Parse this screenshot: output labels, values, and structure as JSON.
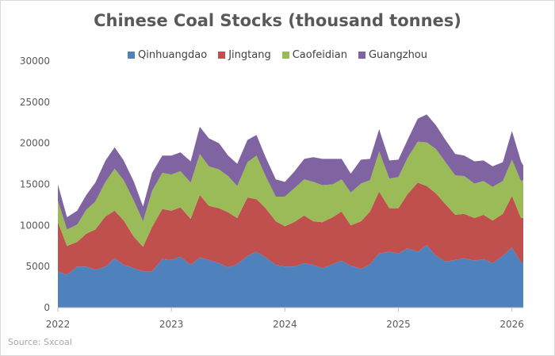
{
  "chart_data": {
    "type": "area",
    "stacked": true,
    "title": "Chinese Coal Stocks (thousand tonnes)",
    "source": "Source: Sxcoal",
    "ylim": [
      0,
      30000
    ],
    "yticks": [
      0,
      5000,
      10000,
      15000,
      20000,
      25000,
      30000
    ],
    "xlim": [
      2022.0,
      2026.1
    ],
    "xticks": [
      2022,
      2023,
      2024,
      2025,
      2026
    ],
    "legend_position": "top",
    "grid": false,
    "x": [
      2022.0,
      2022.08,
      2022.17,
      2022.25,
      2022.33,
      2022.42,
      2022.5,
      2022.58,
      2022.67,
      2022.75,
      2022.83,
      2022.92,
      2023.0,
      2023.08,
      2023.17,
      2023.25,
      2023.33,
      2023.42,
      2023.5,
      2023.58,
      2023.67,
      2023.75,
      2023.83,
      2023.92,
      2024.0,
      2024.08,
      2024.17,
      2024.25,
      2024.33,
      2024.42,
      2024.5,
      2024.58,
      2024.67,
      2024.75,
      2024.83,
      2024.92,
      2025.0,
      2025.08,
      2025.17,
      2025.25,
      2025.33,
      2025.42,
      2025.5,
      2025.58,
      2025.67,
      2025.75,
      2025.83,
      2025.92,
      2026.0,
      2026.08,
      2026.1
    ],
    "series": [
      {
        "name": "Qinhuangdao",
        "color": "#4f81bd",
        "values": [
          4400,
          4000,
          5000,
          5000,
          4600,
          5000,
          6000,
          5200,
          4800,
          4400,
          4400,
          5900,
          5800,
          6200,
          5200,
          6100,
          5800,
          5400,
          4900,
          5300,
          6300,
          6800,
          6100,
          5200,
          5000,
          5000,
          5400,
          5200,
          4800,
          5300,
          5700,
          5100,
          4700,
          5300,
          6600,
          6800,
          6600,
          7200,
          6800,
          7600,
          6300,
          5600,
          5800,
          6000,
          5700,
          5900,
          5400,
          6300,
          7300,
          5500,
          5500
        ]
      },
      {
        "name": "Jingtang",
        "color": "#c0504d",
        "values": [
          6000,
          3500,
          3000,
          4000,
          4900,
          6100,
          5800,
          5400,
          3800,
          3000,
          5400,
          6100,
          6000,
          6000,
          5600,
          7600,
          6600,
          6700,
          6700,
          5600,
          7100,
          6400,
          6000,
          5300,
          4900,
          5400,
          5800,
          5300,
          5600,
          5700,
          6000,
          4900,
          5800,
          6400,
          7500,
          5300,
          5500,
          6600,
          8400,
          7200,
          7600,
          6900,
          5500,
          5400,
          5200,
          5400,
          5200,
          5100,
          6300,
          5400,
          5400
        ]
      },
      {
        "name": "Caofeidian",
        "color": "#9bbb59",
        "values": [
          2600,
          2000,
          2100,
          2900,
          3400,
          4200,
          5100,
          4900,
          4400,
          3100,
          4400,
          4400,
          4400,
          4400,
          4400,
          5000,
          4800,
          4700,
          4400,
          3900,
          4300,
          5300,
          3900,
          3000,
          3600,
          4100,
          4400,
          4800,
          4500,
          4000,
          3900,
          4000,
          4600,
          3800,
          4900,
          3600,
          3800,
          4400,
          5000,
          5300,
          5400,
          5100,
          4800,
          4600,
          4200,
          4100,
          4100,
          4000,
          4400,
          4500,
          4600
        ]
      },
      {
        "name": "Guangzhou",
        "color": "#8064a2",
        "values": [
          2000,
          1500,
          1700,
          1800,
          2300,
          2600,
          2600,
          2400,
          2300,
          1800,
          2200,
          2100,
          2300,
          2300,
          2600,
          3300,
          3400,
          3200,
          2500,
          2700,
          2700,
          2500,
          2300,
          2100,
          1800,
          2000,
          2500,
          3000,
          3200,
          3100,
          2500,
          2300,
          2900,
          2600,
          2700,
          2200,
          2100,
          2200,
          2800,
          3400,
          2900,
          2700,
          2600,
          2500,
          2700,
          2500,
          2500,
          2300,
          3500,
          2400,
          1800
        ]
      }
    ]
  }
}
